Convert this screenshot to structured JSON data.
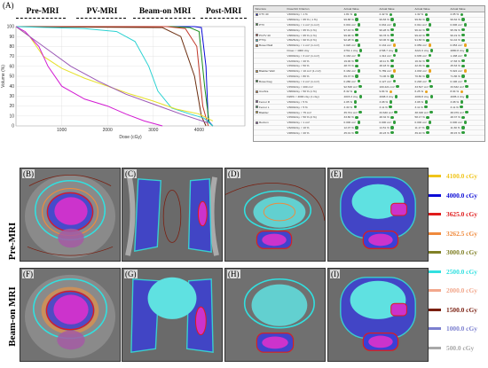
{
  "panel_a": {
    "label": "(A)",
    "phases": [
      "Pre-MRI",
      "PV-MRI",
      "Beam-on MRI",
      "Post-MRI"
    ]
  },
  "chart_data": {
    "type": "line",
    "title": "",
    "xlabel": "Dose (cGy)",
    "ylabel": "Volume (%)",
    "xlim": [
      0,
      5000
    ],
    "ylim": [
      0,
      100
    ],
    "xticks": [
      1000,
      2000,
      3000,
      4000
    ],
    "yticks": [
      0,
      10,
      20,
      30,
      40,
      50,
      60,
      70,
      80,
      90,
      100
    ],
    "grid": true,
    "series": [
      {
        "color": "#0b0bd6",
        "x": [
          0,
          3500,
          3900,
          4050,
          4150,
          4200,
          4300
        ],
        "y": [
          100,
          100,
          100,
          99,
          60,
          5,
          0
        ]
      },
      {
        "color": "#1a8f1a",
        "x": [
          0,
          3400,
          3800,
          4000,
          4120,
          4220,
          4300
        ],
        "y": [
          100,
          100,
          99,
          95,
          40,
          3,
          0
        ]
      },
      {
        "color": "#c0392b",
        "x": [
          0,
          3300,
          3700,
          3950,
          4080,
          4200
        ],
        "y": [
          100,
          100,
          98,
          80,
          20,
          0
        ]
      },
      {
        "color": "#6b2d0f",
        "x": [
          0,
          3200,
          3600,
          3900,
          4050,
          4150
        ],
        "y": [
          100,
          99,
          90,
          50,
          10,
          0
        ]
      },
      {
        "color": "#2bd2d2",
        "x": [
          0,
          1500,
          2200,
          2600,
          2900,
          3100,
          3400,
          3800,
          4100,
          4300
        ],
        "y": [
          100,
          98,
          95,
          85,
          60,
          35,
          18,
          12,
          8,
          0
        ]
      },
      {
        "color": "#e6e02a",
        "x": [
          0,
          300,
          600,
          1000,
          1500,
          2000,
          2500,
          3000,
          3500,
          4000,
          4300
        ],
        "y": [
          100,
          90,
          70,
          58,
          48,
          40,
          32,
          25,
          17,
          12,
          5
        ]
      },
      {
        "color": "#d21bd2",
        "x": [
          0,
          200,
          500,
          700,
          1000,
          1500,
          2000,
          2400,
          2800,
          3200
        ],
        "y": [
          100,
          95,
          80,
          60,
          40,
          27,
          20,
          12,
          5,
          0
        ]
      },
      {
        "color": "#9b59b6",
        "x": [
          0,
          600,
          1200,
          1800,
          2400,
          3000,
          3600,
          4200
        ],
        "y": [
          100,
          80,
          60,
          45,
          32,
          22,
          12,
          3
        ]
      }
    ]
  },
  "table": {
    "headers": [
      "Structure",
      "Dose/Vol Criterion",
      "Actual Value",
      "Actual Value",
      "Actual Value",
      "Actual Value"
    ],
    "rows": [
      {
        "structure": "CTV 40",
        "color": "#0b0bd6",
        "criterion": "V4000cGy > 1 %",
        "v1": "1.81 %",
        "v2": "2.42 %",
        "v3": "1.32 %",
        "v4": "2.05 %"
      },
      {
        "structure": "",
        "color": "",
        "criterion": "V3800cGy > 95 % ( 1 %)",
        "v1": "99.88 %",
        "v2": "99.83 %",
        "v3": "99.84 %",
        "v4": "99.62 %"
      },
      {
        "structure": "PTV",
        "color": "#1a8f1a",
        "criterion": "V4000cGy < 1 cm³ (1 cm³)",
        "v1": "0.001 cm³",
        "v2": "0.034 cm³",
        "v3": "0.011 cm³",
        "v4": "0.006 cm³"
      },
      {
        "structure": "",
        "color": "",
        "criterion": "V3800cGy > 95 % (1 %)",
        "v1": "97.43 %",
        "v2": "96.28 %",
        "v3": "96.42 %",
        "v4": "95.39 %"
      },
      {
        "structure": "PGTV 40",
        "color": "#c0392b",
        "criterion": "V3800cGy > 95 % (1 %)",
        "v1": "99.96 %",
        "v2": "99.78 %",
        "v3": "99.43 %",
        "v4": "99.19 %"
      },
      {
        "structure": "PTVp",
        "color": "#2bd2d2",
        "criterion": "V3625cGy > 90 % (2 %)",
        "v1": "92.28 %",
        "v2": "93.06 %",
        "v3": "91.83 %",
        "v4": "91.42 %"
      },
      {
        "structure": "Bowel Wall",
        "color": "#e67e22",
        "criterion": "V3000cGy < 1 cm³ (1 cm³)",
        "v1": "0.020 cm³",
        "v2": "0.134 cm³",
        "v3": "0.059 cm³",
        "v4": "0.053 cm³"
      },
      {
        "structure": "",
        "color": "",
        "criterion": "Dmax < 4000 cGy",
        "v1": "2761.1 cGy",
        "v2": "2708.7 cGy",
        "v3": "3221.6 cGy",
        "v4": "2880.8 cGy"
      },
      {
        "structure": "",
        "color": "",
        "criterion": "V2000cGy < 3 cm³ (1 cm³)",
        "v1": "0.163 cm³",
        "v2": "1.312 cm³",
        "v3": "0.635 cm³",
        "v4": "1.438 cm³"
      },
      {
        "structure": "",
        "color": "",
        "criterion": "V1200cGy < 20 %",
        "v1": "19.00 %",
        "v2": "18.11 %",
        "v3": "16.32 %",
        "v4": "17.83 %"
      },
      {
        "structure": "",
        "color": "",
        "criterion": "V1500cGy < 50 %",
        "v1": "48.73 %",
        "v2": "48.18 %",
        "v3": "42.49 %",
        "v4": "45.63 %"
      },
      {
        "structure": "Bladder Wall",
        "color": "#e8a21b",
        "criterion": "V3000cGy < 10 cm³ (1 cm³)",
        "v1": "6.184 cm³",
        "v2": "5.789 cm³",
        "v3": "4.033 cm³",
        "v4": "5.022 cm³"
      },
      {
        "structure": "",
        "color": "",
        "criterion": "V1500cGy < 80 %",
        "v1": "69.37 %",
        "v2": "71.06 %",
        "v3": "70.80 %",
        "v4": "71.86 %"
      },
      {
        "structure": "Bowel bag",
        "color": "#1a8f1a",
        "criterion": "V3000cGy < 2 cm³ (1 cm³)",
        "v1": "0.280 cm³",
        "v2": "2.127 cm³",
        "v3": "0.293 cm³",
        "v4": "0.196 cm³"
      },
      {
        "structure": "",
        "color": "",
        "criterion": "V1500cGy < 200 cm³",
        "v1": "92.538 cm³",
        "v2": "100.421 cm³",
        "v3": "33.527 cm³",
        "v4": "33.632 cm³"
      },
      {
        "structure": "Urethra",
        "color": "#e67e22",
        "criterion": "V3800cGy < 50 % (1 %)",
        "v1": "8.32 %",
        "v2": "9.84 %",
        "v3": "6.25 %",
        "v4": "8.94 %"
      },
      {
        "structure": "",
        "color": "",
        "criterion": "D20% < 4000 cGy (1 cGy)",
        "v1": "4015.3 cGy",
        "v2": "4008.3 cGy",
        "v3": "4009.8 cGy",
        "v4": "4005.4 cGy"
      },
      {
        "structure": "Femur R",
        "color": "#7d3c98",
        "criterion": "V3000cGy < 5 %",
        "v1": "2.05 %",
        "v2": "3.08 %",
        "v3": "3.08 %",
        "v4": "3.08 %"
      },
      {
        "structure": "Femur L",
        "color": "#27ae60",
        "criterion": "V3000cGy < 5 %",
        "v1": "3.30 %",
        "v2": "3.11 %",
        "v3": "3.11 %",
        "v4": "3.11 %"
      },
      {
        "structure": "Bladder",
        "color": "#d4ac0d",
        "criterion": "V3000cGy < 75 cm³",
        "v1": "35.701 cm³",
        "v2": "33.630 cm³",
        "v3": "38.338 cm³",
        "v4": "38.079 cm³"
      },
      {
        "structure": "",
        "color": "",
        "criterion": "V1500cGy < 50 % (2 %)",
        "v1": "33.80 %",
        "v2": "48.32 %",
        "v3": "58.17 %",
        "v4": "48.37 %"
      },
      {
        "structure": "Rectum",
        "color": "#8e44ad",
        "criterion": "V3600cGy < 1 cm³",
        "v1": "0.000 cm³",
        "v2": "0.000 cm³",
        "v3": "0.000 cm³",
        "v4": "0.000 cm³"
      },
      {
        "structure": "",
        "color": "",
        "criterion": "V3200cGy < 10 %",
        "v1": "12.07 %",
        "v2": "14.51 %",
        "v3": "11.17 %",
        "v4": "11.60 %"
      },
      {
        "structure": "",
        "color": "",
        "criterion": "V2800cGy < 20 %",
        "v1": "45.01 %",
        "v2": "40.23 %",
        "v3": "39.10 %",
        "v4": "38.15 %"
      }
    ]
  },
  "rows": [
    {
      "label": "Pre-MRI",
      "panels": [
        "(B)",
        "(C)",
        "(D)",
        "(E)"
      ]
    },
    {
      "label": "Beam-on MRI",
      "panels": [
        "(F)",
        "(G)",
        "(H)",
        "(I)"
      ]
    }
  ],
  "legend": [
    {
      "label": "4100.0 cGy",
      "color": "#f0c419"
    },
    {
      "label": "4000.0 cGy",
      "color": "#0b0bd6"
    },
    {
      "label": "3625.0 cGy",
      "color": "#e01b1b"
    },
    {
      "label": "3262.5 cGy",
      "color": "#f08a3c"
    },
    {
      "label": "3000.0 cGy",
      "color": "#808026"
    },
    {
      "label": "2500.0 cGy",
      "color": "#31e0e0"
    },
    {
      "label": "2000.0 cGy",
      "color": "#f2a78c"
    },
    {
      "label": "1500.0 cGy",
      "color": "#7a1f10"
    },
    {
      "label": "1000.0 cGy",
      "color": "#7b7fcf"
    },
    {
      "label": "500.0 cGy",
      "color": "#a8a8a8"
    }
  ]
}
